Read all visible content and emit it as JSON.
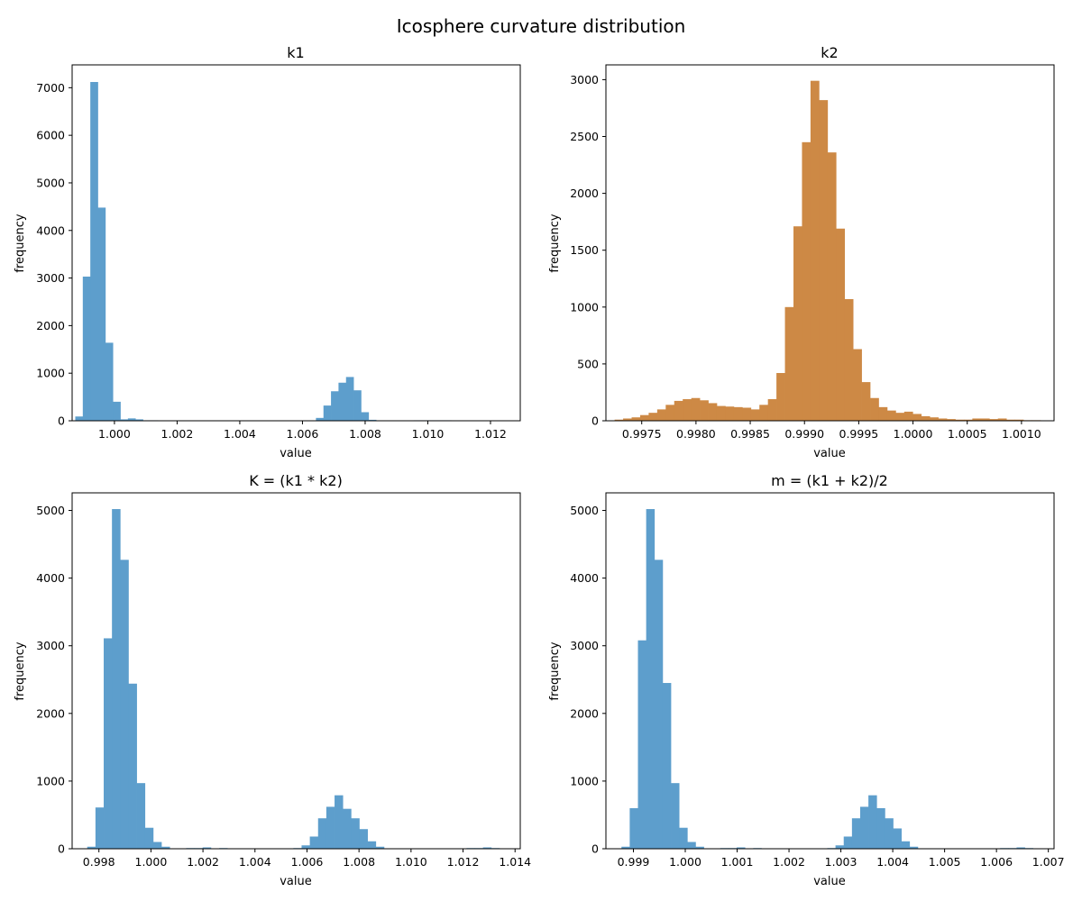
{
  "figure": {
    "title": "Icosphere curvature distribution"
  },
  "chart_data": [
    {
      "type": "bar",
      "title": "k1",
      "xlabel": "value",
      "ylabel": "frequency",
      "color": "#5d9ecc",
      "xlim": [
        0.99865,
        1.01295
      ],
      "ylim": [
        0,
        7480
      ],
      "xticks": [
        1.0,
        1.002,
        1.004,
        1.006,
        1.008,
        1.01,
        1.012
      ],
      "xtick_labels": [
        "1.000",
        "1.002",
        "1.004",
        "1.006",
        "1.008",
        "1.010",
        "1.012"
      ],
      "yticks": [
        0,
        1000,
        2000,
        3000,
        4000,
        5000,
        6000,
        7000
      ],
      "bins_start": 0.99875,
      "bin_width": 0.00024,
      "counts": [
        90,
        3030,
        7120,
        4480,
        1640,
        400,
        30,
        50,
        30,
        10,
        10,
        0,
        0,
        0,
        0,
        0,
        0,
        0,
        0,
        0,
        0,
        0,
        0,
        0,
        0,
        0,
        0,
        0,
        0,
        0,
        0,
        0,
        60,
        320,
        620,
        800,
        920,
        640,
        180,
        20,
        0,
        0,
        0,
        0,
        0,
        10,
        10,
        10,
        10,
        10
      ]
    },
    {
      "type": "bar",
      "title": "k2",
      "xlabel": "value",
      "ylabel": "frequency",
      "color": "#cd8945",
      "xlim": [
        0.99717,
        1.0013
      ],
      "ylim": [
        0,
        3130
      ],
      "xticks": [
        0.9975,
        0.998,
        0.9985,
        0.999,
        0.9995,
        1.0,
        1.0005,
        1.001
      ],
      "xtick_labels": [
        "0.9975",
        "0.9980",
        "0.9985",
        "0.9990",
        "0.9995",
        "1.0000",
        "1.0005",
        "1.0010"
      ],
      "yticks": [
        0,
        500,
        1000,
        1500,
        2000,
        2500,
        3000
      ],
      "bins_start": 0.99725,
      "bin_width": 7.85e-05,
      "counts": [
        10,
        20,
        30,
        50,
        70,
        100,
        140,
        175,
        190,
        200,
        180,
        155,
        130,
        125,
        120,
        115,
        100,
        140,
        190,
        420,
        1000,
        1710,
        2450,
        2990,
        2820,
        2360,
        1690,
        1070,
        630,
        340,
        200,
        120,
        90,
        70,
        80,
        60,
        40,
        30,
        20,
        15,
        10,
        10,
        20,
        20,
        15,
        20,
        10,
        10,
        5,
        5
      ]
    },
    {
      "type": "bar",
      "title": "K = (k1 * k2)",
      "xlabel": "value",
      "ylabel": "frequency",
      "color": "#5d9ecc",
      "xlim": [
        0.99697,
        1.0142
      ],
      "ylim": [
        0,
        5260
      ],
      "xticks": [
        0.998,
        1.0,
        1.002,
        1.004,
        1.006,
        1.008,
        1.01,
        1.012,
        1.014
      ],
      "xtick_labels": [
        "0.998",
        "1.000",
        "1.002",
        "1.004",
        "1.006",
        "1.008",
        "1.010",
        "1.012",
        "1.014"
      ],
      "yticks": [
        0,
        1000,
        2000,
        3000,
        4000,
        5000
      ],
      "bins_start": 0.99755,
      "bin_width": 0.000317,
      "counts": [
        30,
        610,
        3110,
        5020,
        4270,
        2440,
        970,
        310,
        100,
        30,
        0,
        0,
        10,
        10,
        20,
        0,
        10,
        0,
        0,
        0,
        0,
        0,
        0,
        0,
        0,
        10,
        50,
        180,
        450,
        620,
        790,
        590,
        450,
        290,
        110,
        30,
        0,
        0,
        0,
        0,
        0,
        0,
        0,
        0,
        0,
        0,
        10,
        10,
        20,
        10
      ]
    },
    {
      "type": "bar",
      "title": "m = (k1 + k2)/2",
      "xlabel": "value",
      "ylabel": "frequency",
      "color": "#5d9ecc",
      "xlim": [
        0.99847,
        1.00711
      ],
      "ylim": [
        0,
        5260
      ],
      "xticks": [
        0.999,
        1.0,
        1.001,
        1.002,
        1.003,
        1.004,
        1.005,
        1.006,
        1.007
      ],
      "xtick_labels": [
        "0.999",
        "1.000",
        "1.001",
        "1.002",
        "1.003",
        "1.004",
        "1.005",
        "1.006",
        "1.007"
      ],
      "yticks": [
        0,
        1000,
        2000,
        3000,
        4000,
        5000
      ],
      "bins_start": 0.99877,
      "bin_width": 0.0001587,
      "counts": [
        30,
        600,
        3080,
        5020,
        4270,
        2450,
        970,
        310,
        100,
        30,
        0,
        0,
        10,
        10,
        20,
        0,
        10,
        0,
        0,
        0,
        0,
        0,
        0,
        0,
        0,
        10,
        50,
        180,
        450,
        620,
        790,
        600,
        450,
        300,
        110,
        30,
        0,
        0,
        0,
        0,
        0,
        0,
        0,
        0,
        0,
        0,
        10,
        10,
        20,
        10
      ]
    }
  ]
}
